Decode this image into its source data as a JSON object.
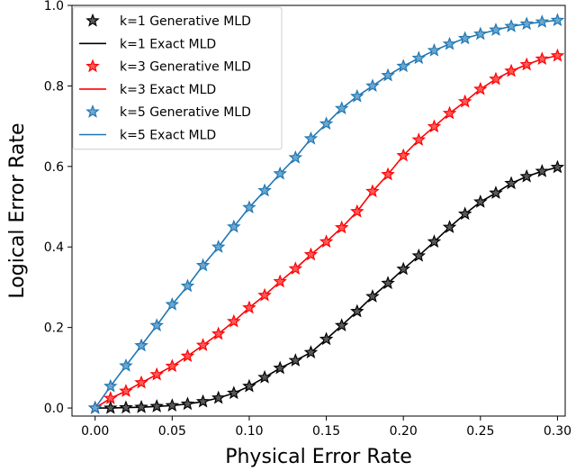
{
  "chart_data": {
    "type": "line",
    "title": "",
    "xlabel": "Physical Error Rate",
    "ylabel": "Logical Error Rate",
    "xlim": [
      -0.015,
      0.305
    ],
    "ylim": [
      -0.02,
      1.0
    ],
    "xticks": [
      0.0,
      0.05,
      0.1,
      0.15,
      0.2,
      0.25,
      0.3
    ],
    "xtick_labels": [
      "0.00",
      "0.05",
      "0.10",
      "0.15",
      "0.20",
      "0.25",
      "0.30"
    ],
    "yticks": [
      0.0,
      0.2,
      0.4,
      0.6,
      0.8,
      1.0
    ],
    "ytick_labels": [
      "0.0",
      "0.2",
      "0.4",
      "0.6",
      "0.8",
      "1.0"
    ],
    "grid": false,
    "legend_position": "top-left",
    "x": [
      0.0,
      0.01,
      0.02,
      0.03,
      0.04,
      0.05,
      0.06,
      0.07,
      0.08,
      0.09,
      0.1,
      0.11,
      0.12,
      0.13,
      0.14,
      0.15,
      0.16,
      0.17,
      0.18,
      0.19,
      0.2,
      0.21,
      0.22,
      0.23,
      0.24,
      0.25,
      0.26,
      0.27,
      0.28,
      0.29,
      0.3
    ],
    "series": [
      {
        "name": "k=1 Generative MLD",
        "marker": "star",
        "color": "#000000",
        "values": [
          0.0,
          0.0,
          0.001,
          0.002,
          0.004,
          0.006,
          0.01,
          0.016,
          0.025,
          0.037,
          0.054,
          0.076,
          0.099,
          0.118,
          0.138,
          0.171,
          0.205,
          0.24,
          0.277,
          0.31,
          0.345,
          0.378,
          0.413,
          0.449,
          0.482,
          0.512,
          0.534,
          0.558,
          0.575,
          0.588,
          0.598
        ]
      },
      {
        "name": "k=1 Exact MLD",
        "marker": "line",
        "color": "#000000",
        "values": [
          0.0,
          0.0,
          0.001,
          0.002,
          0.004,
          0.006,
          0.01,
          0.016,
          0.025,
          0.037,
          0.054,
          0.076,
          0.099,
          0.118,
          0.138,
          0.171,
          0.205,
          0.24,
          0.277,
          0.31,
          0.345,
          0.378,
          0.413,
          0.449,
          0.482,
          0.512,
          0.534,
          0.558,
          0.575,
          0.588,
          0.598
        ]
      },
      {
        "name": "k=3 Generative MLD",
        "marker": "star",
        "color": "#ff0000",
        "values": [
          0.0,
          0.024,
          0.042,
          0.063,
          0.083,
          0.104,
          0.129,
          0.156,
          0.184,
          0.215,
          0.249,
          0.28,
          0.314,
          0.346,
          0.381,
          0.413,
          0.448,
          0.488,
          0.538,
          0.58,
          0.627,
          0.666,
          0.699,
          0.732,
          0.761,
          0.792,
          0.817,
          0.837,
          0.853,
          0.867,
          0.875
        ]
      },
      {
        "name": "k=3 Exact MLD",
        "marker": "line",
        "color": "#ff0000",
        "values": [
          0.0,
          0.024,
          0.042,
          0.063,
          0.083,
          0.104,
          0.129,
          0.156,
          0.184,
          0.215,
          0.249,
          0.28,
          0.314,
          0.346,
          0.381,
          0.413,
          0.448,
          0.488,
          0.538,
          0.58,
          0.627,
          0.666,
          0.699,
          0.732,
          0.761,
          0.792,
          0.817,
          0.837,
          0.853,
          0.867,
          0.875
        ]
      },
      {
        "name": "k=5 Generative MLD",
        "marker": "star",
        "color": "#1f77b4",
        "values": [
          0.0,
          0.054,
          0.105,
          0.155,
          0.205,
          0.257,
          0.303,
          0.354,
          0.4,
          0.45,
          0.498,
          0.54,
          0.582,
          0.622,
          0.669,
          0.706,
          0.744,
          0.774,
          0.8,
          0.826,
          0.849,
          0.869,
          0.888,
          0.904,
          0.918,
          0.929,
          0.939,
          0.948,
          0.954,
          0.959,
          0.963
        ]
      },
      {
        "name": "k=5 Exact MLD",
        "marker": "line",
        "color": "#1f77b4",
        "values": [
          0.0,
          0.054,
          0.105,
          0.155,
          0.205,
          0.257,
          0.303,
          0.354,
          0.4,
          0.45,
          0.498,
          0.54,
          0.582,
          0.622,
          0.669,
          0.706,
          0.744,
          0.774,
          0.8,
          0.826,
          0.849,
          0.869,
          0.888,
          0.904,
          0.918,
          0.929,
          0.939,
          0.948,
          0.954,
          0.959,
          0.963
        ]
      }
    ]
  }
}
